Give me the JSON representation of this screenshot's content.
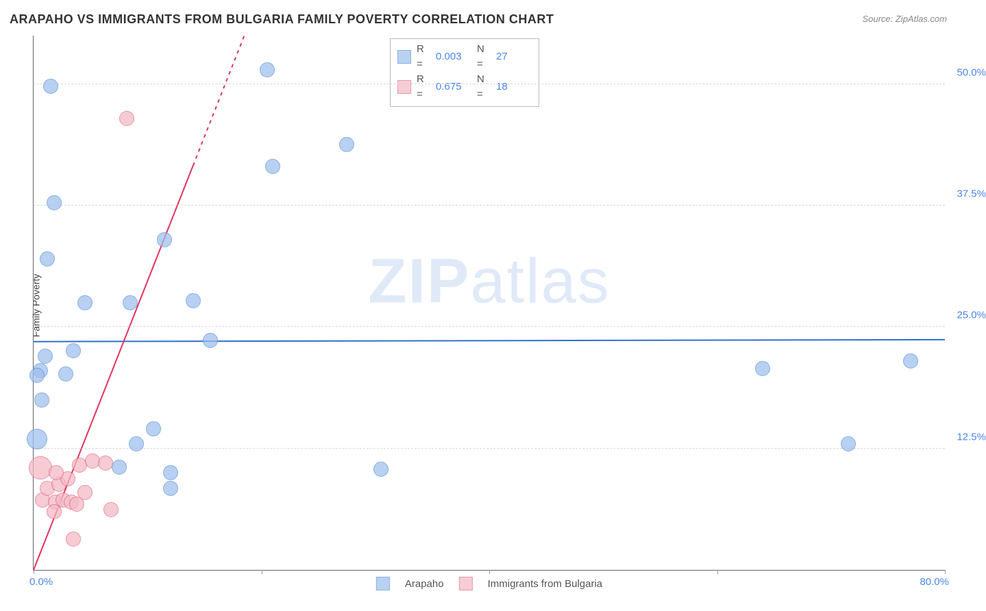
{
  "title": "ARAPAHO VS IMMIGRANTS FROM BULGARIA FAMILY POVERTY CORRELATION CHART",
  "source_prefix": "Source: ",
  "source_name": "ZipAtlas.com",
  "y_axis_label": "Family Poverty",
  "watermark_a": "ZIP",
  "watermark_b": "atlas",
  "chart": {
    "type": "scatter",
    "xlim": [
      0,
      80
    ],
    "ylim": [
      0,
      55
    ],
    "x_ticks": [
      0,
      20,
      40,
      60,
      80
    ],
    "x_tick_labels": {
      "min": "0.0%",
      "max": "80.0%"
    },
    "y_ticks": [
      12.5,
      25.0,
      37.5,
      50.0
    ],
    "y_tick_labels": [
      "12.5%",
      "25.0%",
      "37.5%",
      "50.0%"
    ],
    "grid_color": "#d5d5d5",
    "background": "#ffffff",
    "marker_radius": 10,
    "marker_alpha": 0.28,
    "series": [
      {
        "name": "Arapaho",
        "fill": "#9ec0ec",
        "stroke": "#5b8fd6",
        "R": "0.003",
        "N": "27",
        "trend": {
          "x1": 0,
          "y1": 23.5,
          "x2": 80,
          "y2": 23.7,
          "solid_to_x": 80,
          "color": "#2f6fd0",
          "width": 2
        },
        "points": [
          {
            "x": 1.5,
            "y": 49.8,
            "r": 10
          },
          {
            "x": 20.5,
            "y": 51.5,
            "r": 10
          },
          {
            "x": 27.5,
            "y": 43.8,
            "r": 10
          },
          {
            "x": 21.0,
            "y": 41.5,
            "r": 10
          },
          {
            "x": 1.8,
            "y": 37.8,
            "r": 10
          },
          {
            "x": 11.5,
            "y": 34.0,
            "r": 10
          },
          {
            "x": 1.2,
            "y": 32.0,
            "r": 10
          },
          {
            "x": 4.5,
            "y": 27.5,
            "r": 10
          },
          {
            "x": 8.5,
            "y": 27.5,
            "r": 10
          },
          {
            "x": 14.0,
            "y": 27.7,
            "r": 10
          },
          {
            "x": 15.5,
            "y": 23.6,
            "r": 10
          },
          {
            "x": 1.0,
            "y": 22.0,
            "r": 10
          },
          {
            "x": 3.5,
            "y": 22.6,
            "r": 10
          },
          {
            "x": 0.6,
            "y": 20.5,
            "r": 10
          },
          {
            "x": 2.8,
            "y": 20.2,
            "r": 10
          },
          {
            "x": 64.0,
            "y": 20.7,
            "r": 10
          },
          {
            "x": 77.0,
            "y": 21.5,
            "r": 10
          },
          {
            "x": 0.7,
            "y": 17.5,
            "r": 10
          },
          {
            "x": 10.5,
            "y": 14.5,
            "r": 10
          },
          {
            "x": 71.5,
            "y": 13.0,
            "r": 10
          },
          {
            "x": 9.0,
            "y": 13.0,
            "r": 10
          },
          {
            "x": 7.5,
            "y": 10.6,
            "r": 10
          },
          {
            "x": 12.0,
            "y": 10.0,
            "r": 10
          },
          {
            "x": 30.5,
            "y": 10.4,
            "r": 10
          },
          {
            "x": 12.0,
            "y": 8.4,
            "r": 10
          },
          {
            "x": 0.3,
            "y": 13.5,
            "r": 14
          },
          {
            "x": 0.3,
            "y": 20.0,
            "r": 10
          }
        ]
      },
      {
        "name": "Immigrants from Bulgaria",
        "fill": "#f3b9c5",
        "stroke": "#e06a87",
        "R": "0.675",
        "N": "18",
        "trend": {
          "x1": 0,
          "y1": 0,
          "x2": 18.5,
          "y2": 55,
          "solid_to_x": 14,
          "color": "#e2335b",
          "width": 2
        },
        "points": [
          {
            "x": 8.2,
            "y": 46.5,
            "r": 10
          },
          {
            "x": 0.6,
            "y": 10.5,
            "r": 16
          },
          {
            "x": 0.8,
            "y": 7.2,
            "r": 10
          },
          {
            "x": 1.9,
            "y": 7.0,
            "r": 10
          },
          {
            "x": 2.6,
            "y": 7.2,
            "r": 10
          },
          {
            "x": 3.3,
            "y": 7.0,
            "r": 10
          },
          {
            "x": 1.2,
            "y": 8.4,
            "r": 10
          },
          {
            "x": 2.2,
            "y": 8.8,
            "r": 10
          },
          {
            "x": 3.0,
            "y": 9.4,
            "r": 10
          },
          {
            "x": 4.0,
            "y": 10.8,
            "r": 10
          },
          {
            "x": 5.2,
            "y": 11.2,
            "r": 10
          },
          {
            "x": 6.3,
            "y": 11.0,
            "r": 10
          },
          {
            "x": 4.5,
            "y": 8.0,
            "r": 10
          },
          {
            "x": 1.8,
            "y": 6.0,
            "r": 10
          },
          {
            "x": 6.8,
            "y": 6.2,
            "r": 10
          },
          {
            "x": 3.5,
            "y": 3.2,
            "r": 10
          },
          {
            "x": 2.0,
            "y": 10.0,
            "r": 10
          },
          {
            "x": 3.8,
            "y": 6.8,
            "r": 10
          }
        ]
      }
    ],
    "legend_top": {
      "col1_label": "R =",
      "col2_label": "N ="
    },
    "legend_bottom": {}
  }
}
